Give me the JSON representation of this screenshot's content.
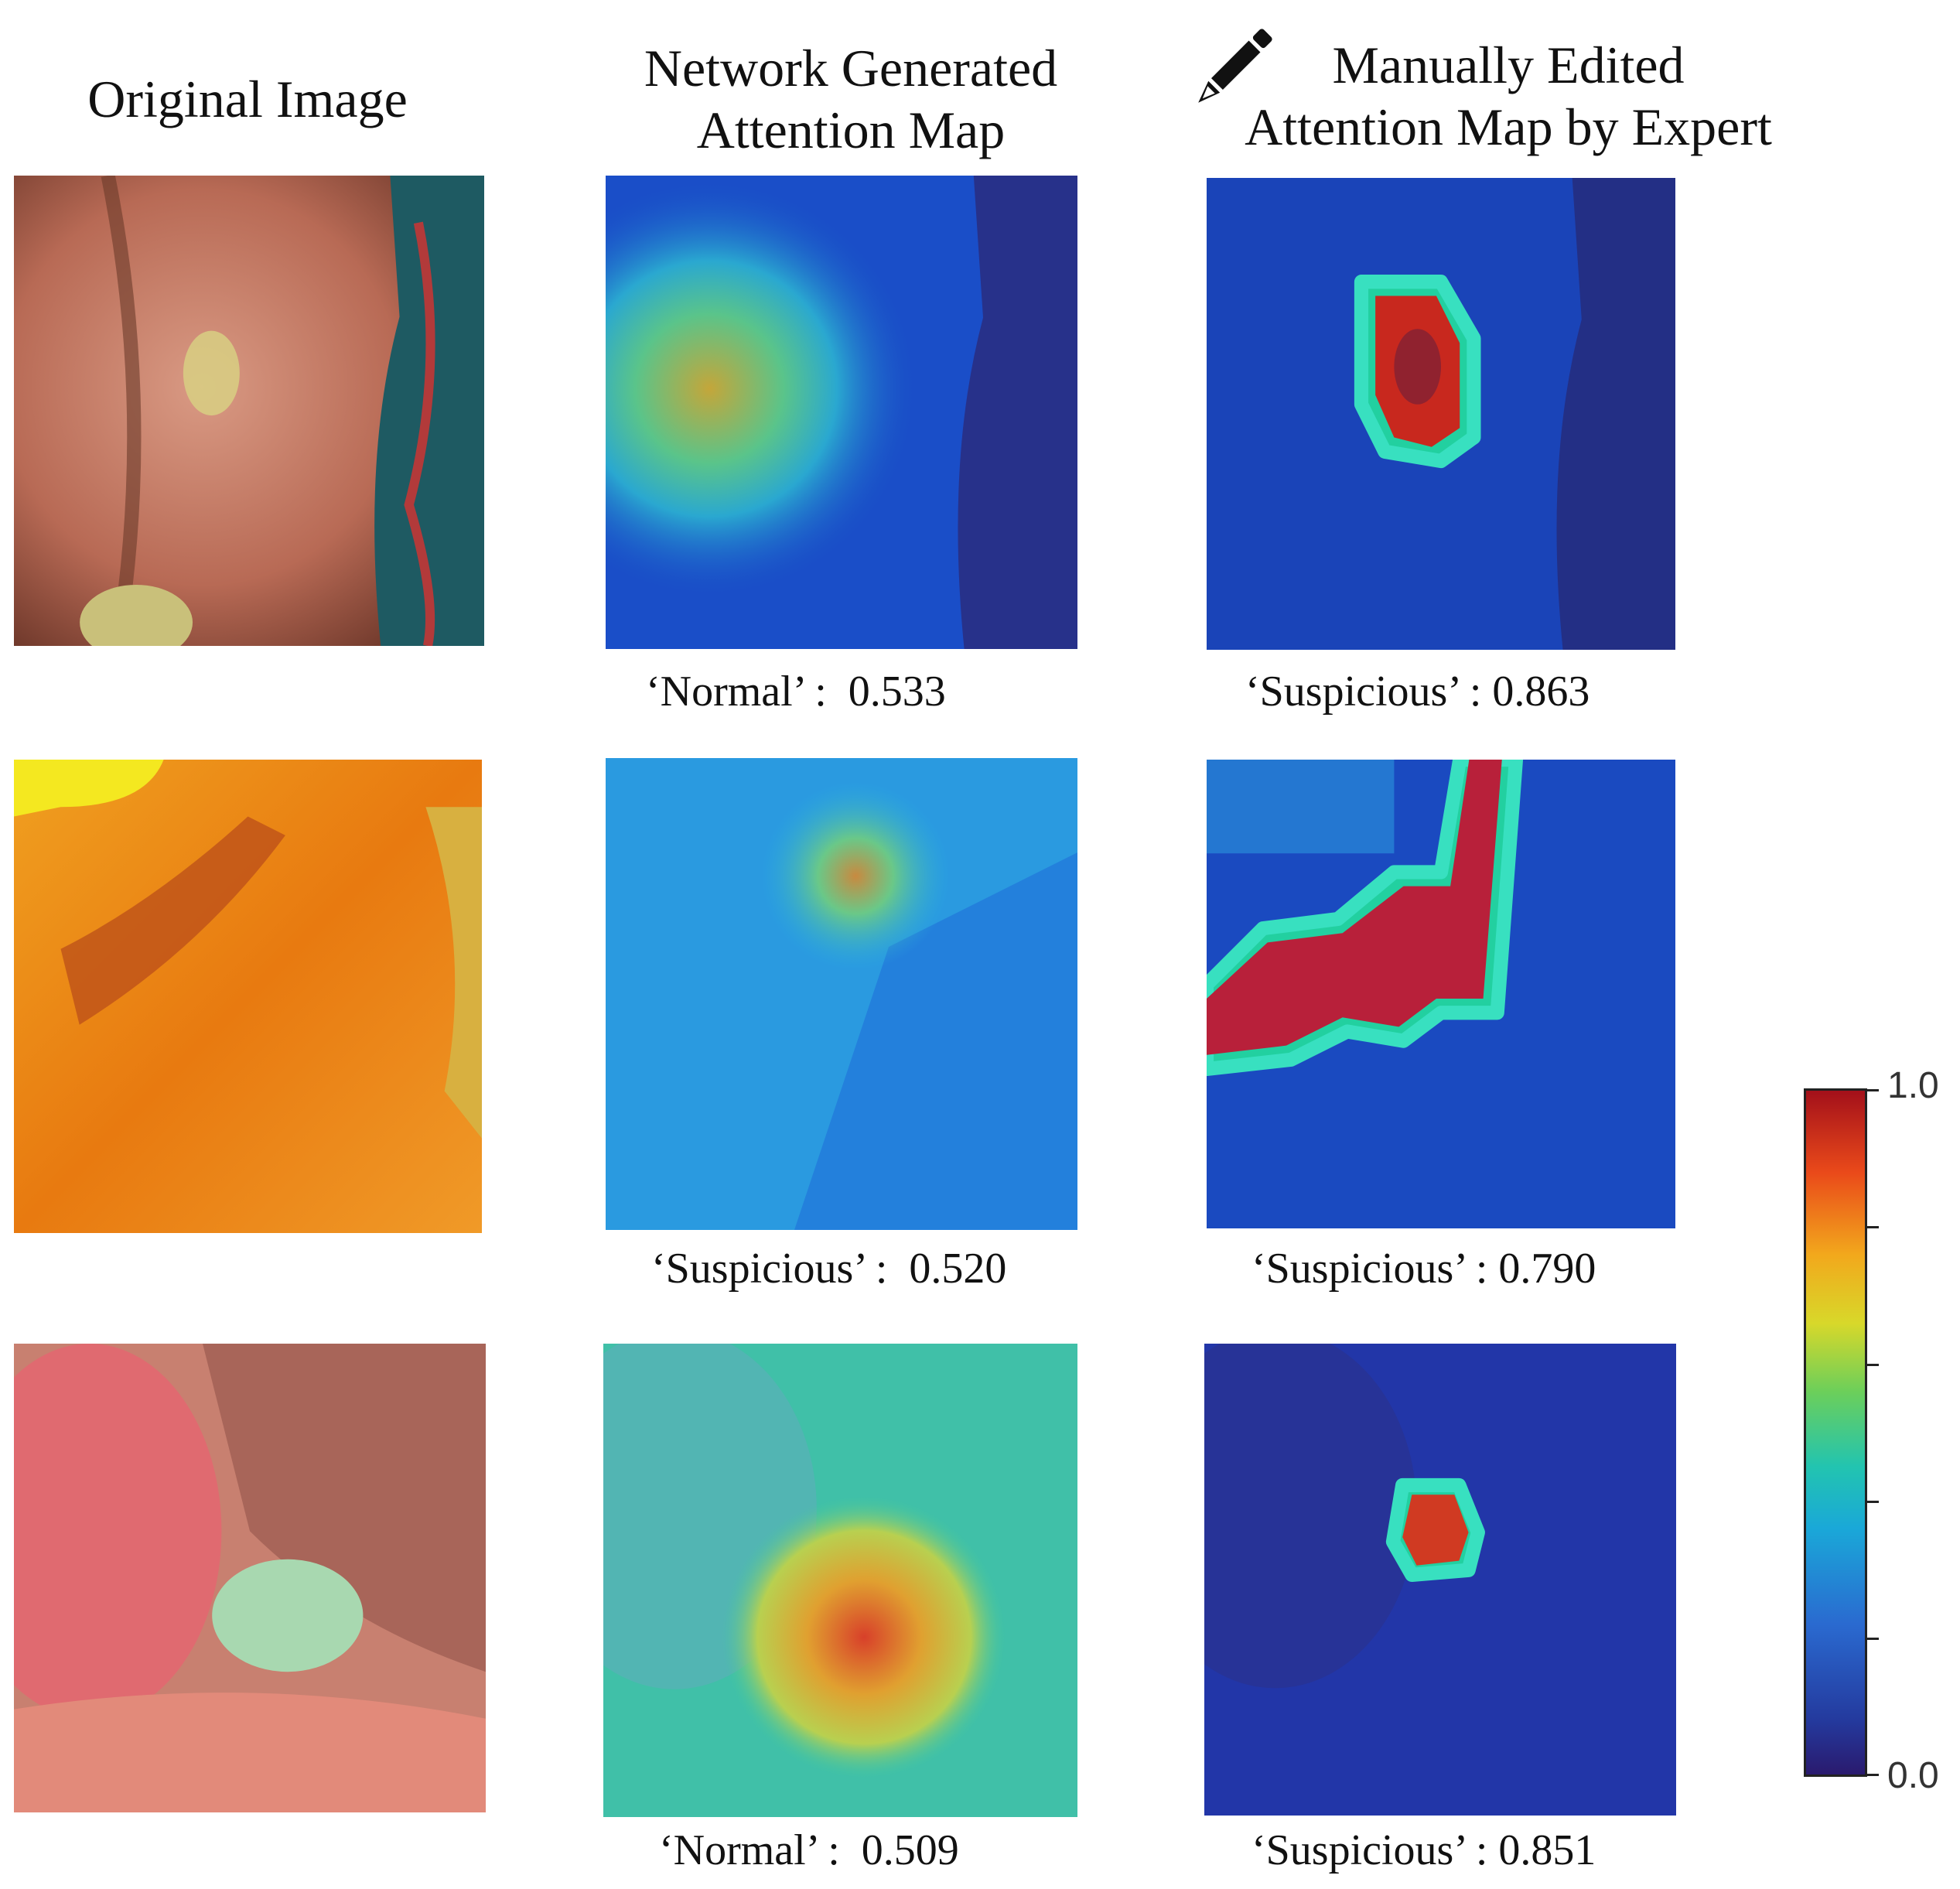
{
  "headers": {
    "original": "Original Image",
    "network_line1": "Network Generated",
    "network_line2": "Attention Map",
    "manual_line1": "Manually Edited",
    "manual_line2": "Attention Map by Expert"
  },
  "icons": {
    "manual_edit": "pencil-icon"
  },
  "rows": [
    {
      "network_caption": "‘Normal’ :  0.533",
      "expert_caption": "‘Suspicious’ : 0.863"
    },
    {
      "network_caption": "‘Suspicious’ :  0.520",
      "expert_caption": "‘Suspicious’ : 0.790"
    },
    {
      "network_caption": "‘Normal’ :  0.509",
      "expert_caption": "‘Suspicious’ : 0.851"
    }
  ],
  "colorbar": {
    "max_label": "1.0",
    "min_label": "0.0",
    "low_color": "#2a1a6e",
    "high_color": "#a3101a"
  }
}
